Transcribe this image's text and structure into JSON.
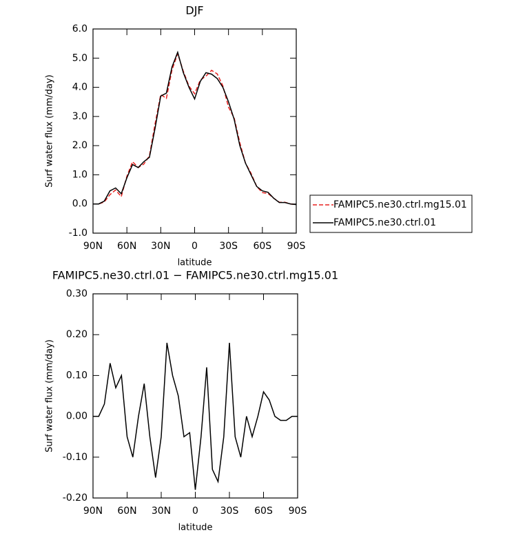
{
  "chart_data": [
    {
      "type": "line",
      "title": "DJF",
      "xlabel": "latitude",
      "ylabel": "Surf water flux (mm/day)",
      "x": [
        90,
        85,
        80,
        75,
        70,
        65,
        60,
        55,
        50,
        45,
        40,
        35,
        30,
        25,
        20,
        15,
        10,
        5,
        0,
        -5,
        -10,
        -15,
        -20,
        -25,
        -30,
        -35,
        -40,
        -45,
        -50,
        -55,
        -60,
        -65,
        -70,
        -75,
        -80,
        -85,
        -90
      ],
      "xlim": [
        90,
        -90
      ],
      "xticks": [
        {
          "value": 90,
          "label": "90N"
        },
        {
          "value": 60,
          "label": "60N"
        },
        {
          "value": 30,
          "label": "30N"
        },
        0,
        {
          "value": -30,
          "label": "30S"
        },
        {
          "value": -60,
          "label": "60S"
        },
        {
          "value": -90,
          "label": "90S"
        }
      ],
      "ylim": [
        -1,
        6
      ],
      "yticks": [
        {
          "value": -1,
          "label": "-1.0"
        },
        {
          "value": 0,
          "label": "0.0"
        },
        {
          "value": 1,
          "label": "1.0"
        },
        {
          "value": 2,
          "label": "2.0"
        },
        {
          "value": 3,
          "label": "3.0"
        },
        {
          "value": 4,
          "label": "4.0"
        },
        {
          "value": 5,
          "label": "5.0"
        },
        {
          "value": 6,
          "label": "6.0"
        }
      ],
      "series": [
        {
          "name": "FAMIPC5.ne30.ctrl.mg15.01",
          "color": "#e8201e",
          "dash": true,
          "values": [
            0.0,
            0.0,
            0.07,
            0.32,
            0.48,
            0.25,
            0.95,
            1.45,
            1.25,
            1.37,
            1.65,
            2.75,
            3.75,
            3.62,
            4.6,
            5.15,
            4.55,
            4.04,
            3.78,
            4.25,
            4.38,
            4.58,
            4.46,
            4.05,
            3.32,
            2.95,
            2.1,
            1.4,
            1.05,
            0.6,
            0.39,
            0.36,
            0.2,
            0.06,
            0.06,
            0.0,
            -0.02
          ]
        },
        {
          "name": "FAMIPC5.ne30.ctrl.01",
          "color": "#000000",
          "dash": false,
          "values": [
            0.0,
            0.0,
            0.1,
            0.45,
            0.55,
            0.35,
            0.9,
            1.35,
            1.25,
            1.45,
            1.6,
            2.6,
            3.7,
            3.8,
            4.7,
            5.2,
            4.5,
            4.0,
            3.6,
            4.2,
            4.5,
            4.45,
            4.3,
            4.0,
            3.5,
            2.9,
            2.0,
            1.4,
            1.0,
            0.6,
            0.45,
            0.4,
            0.2,
            0.05,
            0.05,
            0.0,
            -0.02
          ]
        }
      ]
    },
    {
      "type": "line",
      "title": "FAMIPC5.ne30.ctrl.01 − FAMIPC5.ne30.ctrl.mg15.01",
      "xlabel": "latitude",
      "ylabel": "Surf water flux (mm/day)",
      "x": [
        90,
        85,
        80,
        75,
        70,
        65,
        60,
        55,
        50,
        45,
        40,
        35,
        30,
        25,
        20,
        15,
        10,
        5,
        0,
        -5,
        -10,
        -15,
        -20,
        -25,
        -30,
        -35,
        -40,
        -45,
        -50,
        -55,
        -60,
        -65,
        -70,
        -75,
        -80,
        -85,
        -90
      ],
      "xlim": [
        90,
        -90
      ],
      "xticks": [
        {
          "value": 90,
          "label": "90N"
        },
        {
          "value": 60,
          "label": "60N"
        },
        {
          "value": 30,
          "label": "30N"
        },
        0,
        {
          "value": -30,
          "label": "30S"
        },
        {
          "value": -60,
          "label": "60S"
        },
        {
          "value": -90,
          "label": "90S"
        }
      ],
      "ylim": [
        -0.2,
        0.3
      ],
      "yticks": [
        {
          "value": -0.2,
          "label": "-0.20"
        },
        {
          "value": -0.1,
          "label": "-0.10"
        },
        {
          "value": 0,
          "label": "0.00"
        },
        {
          "value": 0.1,
          "label": "0.10"
        },
        {
          "value": 0.2,
          "label": "0.20"
        },
        {
          "value": 0.3,
          "label": "0.30"
        }
      ],
      "series": [
        {
          "color": "#000000",
          "dash": false,
          "values": [
            0.0,
            0.0,
            0.03,
            0.13,
            0.07,
            0.1,
            -0.05,
            -0.1,
            0.0,
            0.08,
            -0.05,
            -0.15,
            -0.05,
            0.18,
            0.1,
            0.05,
            -0.05,
            -0.04,
            -0.18,
            -0.05,
            0.12,
            -0.13,
            -0.16,
            -0.05,
            0.18,
            -0.05,
            -0.1,
            0.0,
            -0.05,
            0.0,
            0.06,
            0.04,
            0.0,
            -0.01,
            -0.01,
            0.0,
            0.0
          ]
        }
      ]
    }
  ]
}
